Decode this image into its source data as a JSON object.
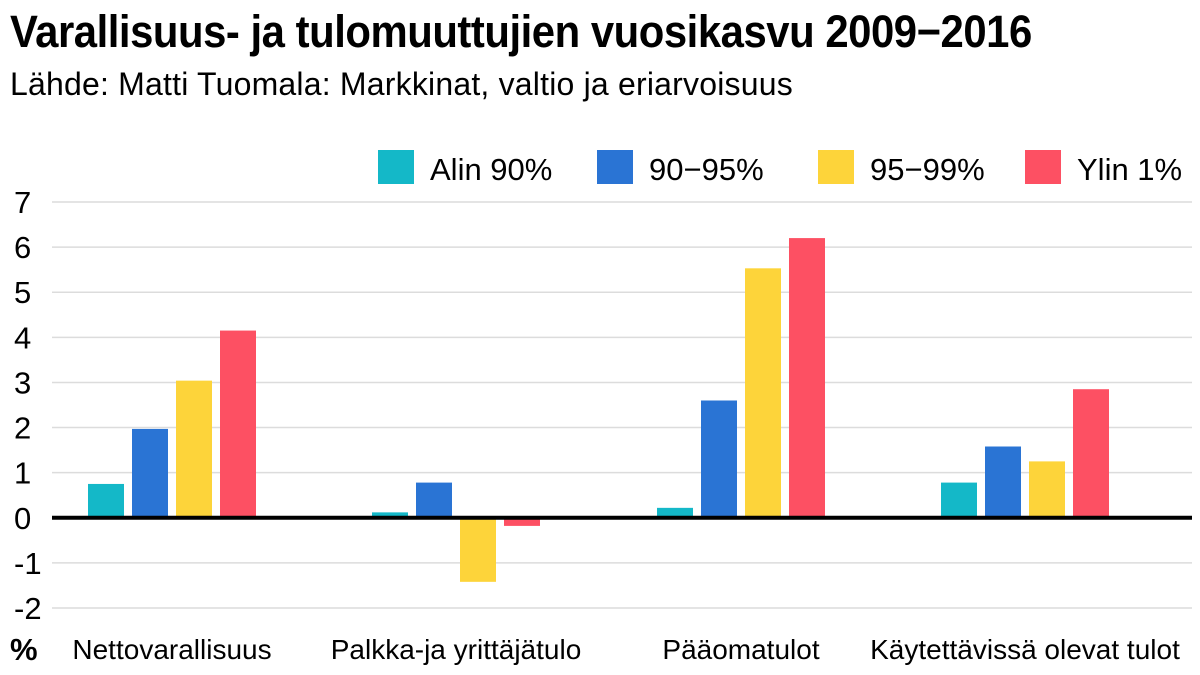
{
  "title": "Varallisuus- ja tulomuuttujien vuosikasvu 2009−2016",
  "subtitle": "Lähde: Matti Tuomala: Markkinat, valtio ja eriarvoisuus",
  "chart_data": {
    "type": "bar",
    "categories": [
      "Nettovarallisuus",
      "Palkka-ja yrittäjätulo",
      "Pääomatulot",
      "Käytettävissä olevat tulot"
    ],
    "series": [
      {
        "name": "Alin 90%",
        "color": "#14b8c8",
        "values": [
          0.75,
          0.12,
          0.22,
          0.78
        ]
      },
      {
        "name": "90−95%",
        "color": "#2a74d4",
        "values": [
          1.97,
          0.78,
          2.6,
          1.58
        ]
      },
      {
        "name": "95−99%",
        "color": "#fdd43a",
        "values": [
          3.04,
          -1.42,
          5.53,
          1.25
        ]
      },
      {
        "name": "Ylin 1%",
        "color": "#fd5063",
        "values": [
          4.15,
          -0.18,
          6.2,
          2.85
        ]
      }
    ],
    "ylabel": "%",
    "ylim": [
      -2,
      7
    ],
    "yticks": [
      "-2",
      "-1",
      "0",
      "1",
      "2",
      "3",
      "4",
      "5",
      "6",
      "7"
    ],
    "grid": true,
    "legend_position": "top-right"
  }
}
